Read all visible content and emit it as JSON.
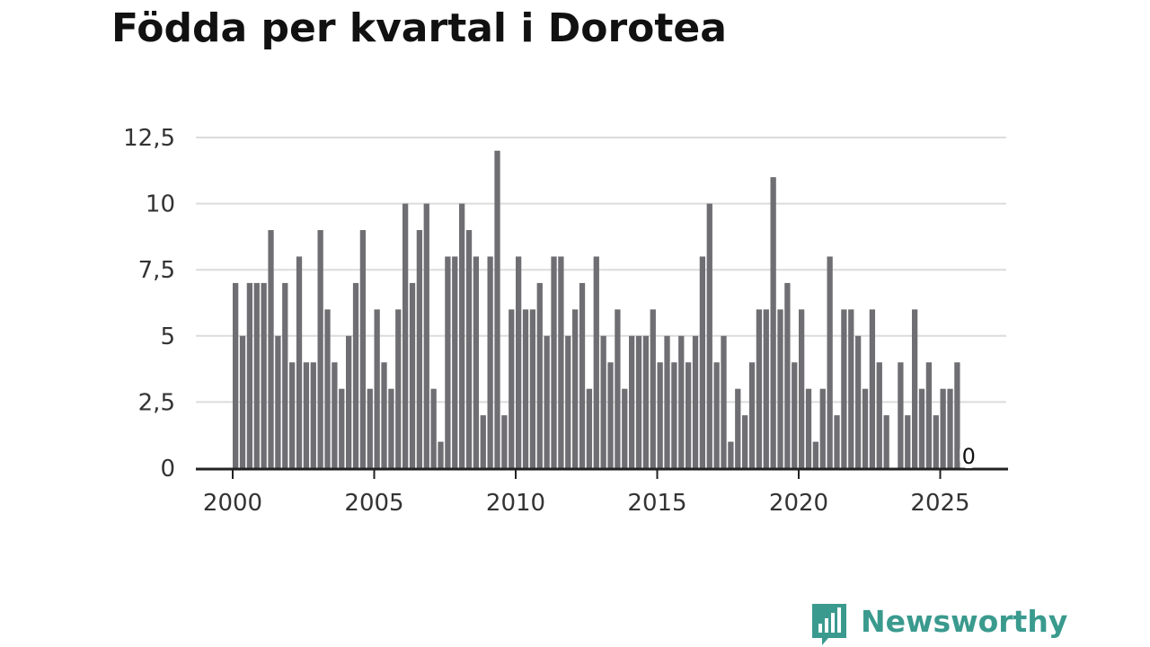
{
  "title": "Födda per kvartal i Dorotea",
  "brand": {
    "name": "Newsworthy",
    "color": "#3a9a8e",
    "icon": "bar-chart-logo-icon"
  },
  "colors": {
    "bar": "#6f6e72",
    "grid": "#dcdcdc",
    "axis": "#222222"
  },
  "chart_data": {
    "type": "bar",
    "x_unit": "year (quarterly bars)",
    "x_start": 2000,
    "bars_per_year": 4,
    "xlim": [
      2000,
      2026.25
    ],
    "ylim": [
      0,
      12.5
    ],
    "yticks": [
      0,
      2.5,
      5,
      7.5,
      10,
      12.5
    ],
    "ytick_labels": [
      "0",
      "2,5",
      "5",
      "7,5",
      "10",
      "12,5"
    ],
    "xticks": [
      2000,
      2005,
      2010,
      2015,
      2020,
      2025
    ],
    "xtick_labels": [
      "2000",
      "2005",
      "2010",
      "2015",
      "2020",
      "2025"
    ],
    "grid": true,
    "values": [
      7,
      5,
      7,
      7,
      7,
      9,
      5,
      7,
      4,
      8,
      4,
      4,
      9,
      6,
      4,
      3,
      5,
      7,
      9,
      3,
      6,
      4,
      3,
      6,
      10,
      7,
      9,
      10,
      3,
      1,
      8,
      8,
      10,
      9,
      8,
      2,
      8,
      12,
      2,
      6,
      8,
      6,
      6,
      7,
      5,
      8,
      8,
      5,
      6,
      7,
      3,
      8,
      5,
      4,
      6,
      3,
      5,
      5,
      5,
      6,
      4,
      5,
      4,
      5,
      4,
      5,
      8,
      10,
      4,
      5,
      1,
      3,
      2,
      4,
      6,
      6,
      11,
      6,
      7,
      4,
      6,
      3,
      1,
      3,
      8,
      2,
      6,
      6,
      5,
      3,
      6,
      4,
      2,
      0,
      4,
      2,
      6,
      3,
      4,
      2,
      3,
      3,
      4,
      0
    ],
    "last_value_label": "0"
  }
}
